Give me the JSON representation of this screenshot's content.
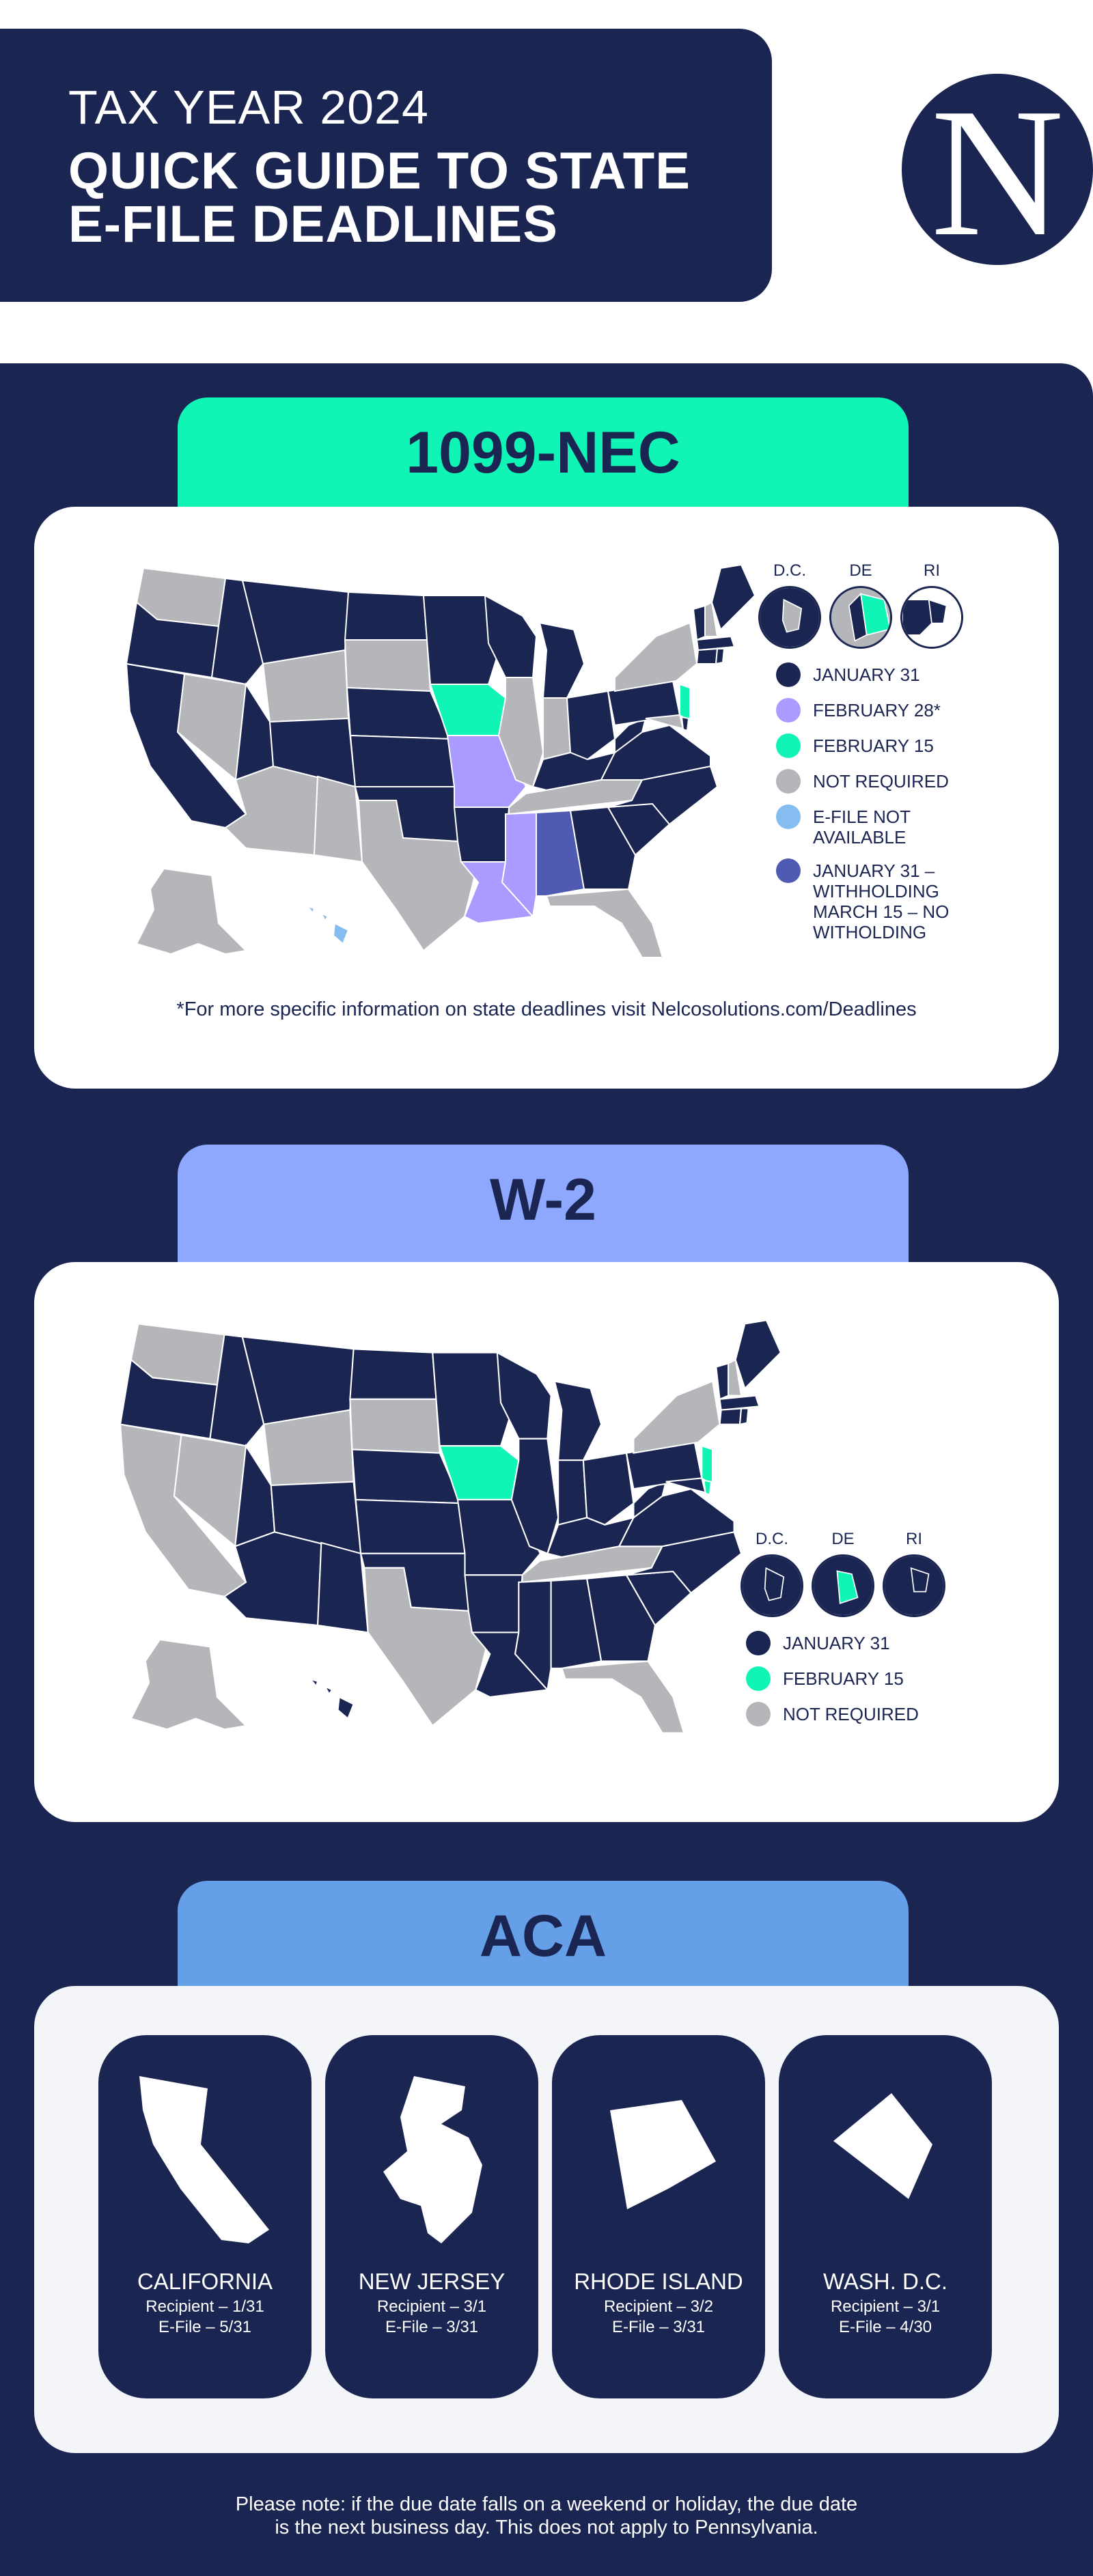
{
  "header": {
    "tax_year": "TAX YEAR 2024",
    "title_line1": "QUICK GUIDE TO STATE",
    "title_line2": "E-FILE DEADLINES",
    "logo_letter": "N"
  },
  "colors": {
    "navy": "#1b2552",
    "mint": "#10f5b6",
    "periwinkle": "#8fa8ff",
    "lavender": "#a99bff",
    "gray": "#b5b6ba",
    "light_blue": "#86bdf0",
    "indigo": "#4f5bb2",
    "aca_tab": "#659fe8"
  },
  "sections": {
    "nec": {
      "tab": "1099-NEC",
      "insets": [
        "D.C.",
        "DE",
        "RI"
      ],
      "legend": [
        {
          "label": "JANUARY 31",
          "color": "#1b2552"
        },
        {
          "label": "FEBRUARY 28*",
          "color": "#a99bff"
        },
        {
          "label": "FEBRUARY 15",
          "color": "#10f5b6"
        },
        {
          "label": "NOT REQUIRED",
          "color": "#b5b6ba"
        },
        {
          "label": "E-FILE NOT\nAVAILABLE",
          "color": "#86bdf0"
        },
        {
          "label": "JANUARY 31 –\nWITHHOLDING\nMARCH 15 – NO\nWITHOLDING",
          "color": "#4f5bb2"
        }
      ],
      "footnote": "*For more specific information on state deadlines visit Nelcosolutions.com/Deadlines"
    },
    "w2": {
      "tab": "W-2",
      "insets": [
        "D.C.",
        "DE",
        "RI"
      ],
      "legend": [
        {
          "label": "JANUARY 31",
          "color": "#1b2552"
        },
        {
          "label": "FEBRUARY 15",
          "color": "#10f5b6"
        },
        {
          "label": "NOT REQUIRED",
          "color": "#b5b6ba"
        }
      ]
    },
    "aca": {
      "tab": "ACA",
      "states": [
        {
          "name": "CALIFORNIA",
          "recipient": "Recipient – 1/31",
          "efile": "E-File –  5/31",
          "icon": "california-shape-icon"
        },
        {
          "name": "NEW JERSEY",
          "recipient": "Recipient – 3/1",
          "efile": "E-File – 3/31",
          "icon": "new-jersey-shape-icon"
        },
        {
          "name": "RHODE ISLAND",
          "recipient": "Recipient –  3/2",
          "efile": "E-File – 3/31",
          "icon": "rhode-island-shape-icon"
        },
        {
          "name": "WASH. D.C.",
          "recipient": "Recipient – 3/1",
          "efile": "E-File – 4/30",
          "icon": "dc-shape-icon"
        }
      ]
    }
  },
  "note": "Please note: if the due date falls on a weekend or holiday, the due date\nis the next business day. This does not apply to Pennsylvania."
}
